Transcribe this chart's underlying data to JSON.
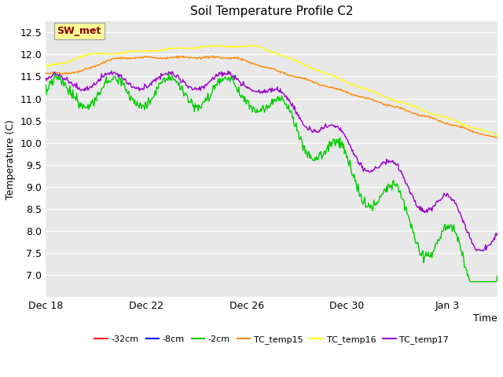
{
  "title": "Soil Temperature Profile C2",
  "xlabel": "Time",
  "ylabel": "Temperature (C)",
  "ylim": [
    6.5,
    12.75
  ],
  "yticks": [
    7.0,
    7.5,
    8.0,
    8.5,
    9.0,
    9.5,
    10.0,
    10.5,
    11.0,
    11.5,
    12.0,
    12.5
  ],
  "fig_bg": "#ffffff",
  "plot_bg": "#e8e8e8",
  "grid_color": "#ffffff",
  "annotation_text": "SW_met",
  "annotation_color": "#8b0000",
  "annotation_bg": "#ffff99",
  "annotation_edge": "#aaaaaa",
  "legend_labels": [
    "-32cm",
    "-8cm",
    "-2cm",
    "TC_temp15",
    "TC_temp16",
    "TC_temp17"
  ],
  "legend_colors": [
    "#ff0000",
    "#0000ff",
    "#00cc00",
    "#ff8800",
    "#ffff00",
    "#9900cc"
  ],
  "line_colors": {
    "tc15": "#ff8800",
    "tc16": "#ffff00",
    "tc17": "#9900cc",
    "cm2": "#00cc00"
  },
  "xtick_labels": [
    "Dec 18",
    "Dec 22",
    "Dec 26",
    "Dec 30",
    "Jan 3"
  ],
  "xtick_pos": [
    0,
    4,
    8,
    12,
    16
  ],
  "xlim": [
    0,
    18
  ],
  "n_points": 600
}
